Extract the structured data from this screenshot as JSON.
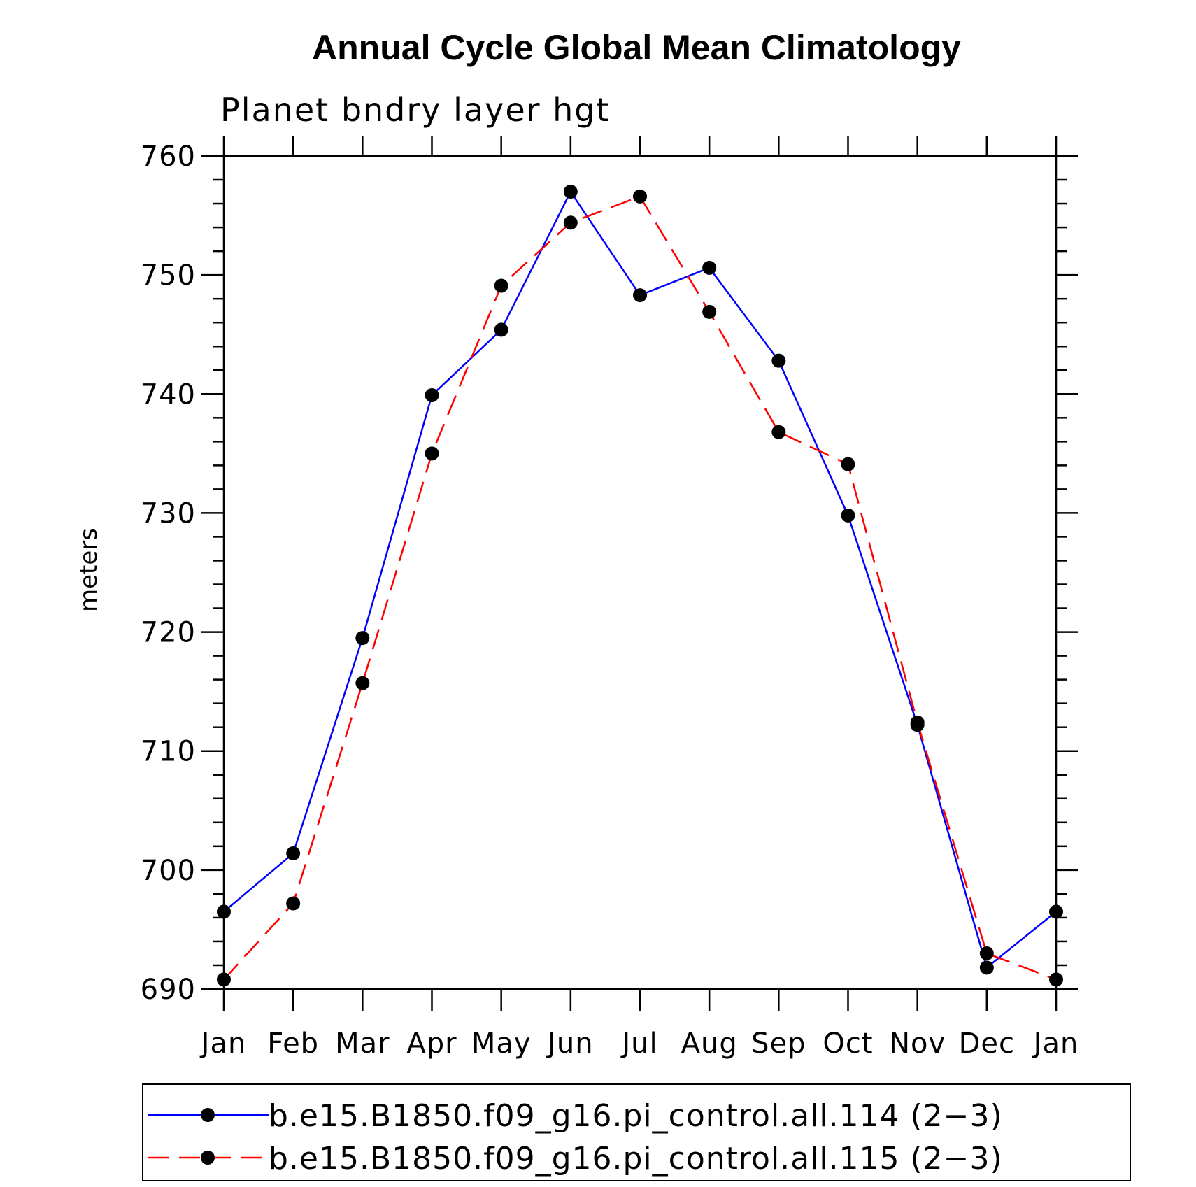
{
  "chart_data": {
    "type": "line",
    "title": "Annual Cycle Global Mean Climatology",
    "subtitle": "Planet bndry layer hgt",
    "xlabel": "",
    "ylabel": "meters",
    "categories": [
      "Jan",
      "Feb",
      "Mar",
      "Apr",
      "May",
      "Jun",
      "Jul",
      "Aug",
      "Sep",
      "Oct",
      "Nov",
      "Dec",
      "Jan"
    ],
    "ylim": [
      690,
      760
    ],
    "yticks": [
      690,
      700,
      710,
      720,
      730,
      740,
      750,
      760
    ],
    "ytick_labels": [
      "690",
      "700",
      "710",
      "720",
      "730",
      "740",
      "750",
      "760"
    ],
    "grid": false,
    "legend_position": "bottom",
    "series": [
      {
        "name": "b.e15.B1850.f09_g16.pi_control.all.114 (2−3)",
        "color": "#0000ff",
        "line_style": "solid",
        "marker": "filled-circle",
        "values": [
          696.5,
          701.4,
          719.5,
          739.9,
          745.4,
          757.0,
          748.3,
          750.6,
          742.8,
          729.8,
          712.2,
          691.8,
          696.5
        ]
      },
      {
        "name": "b.e15.B1850.f09_g16.pi_control.all.115 (2−3)",
        "color": "#ff0000",
        "line_style": "dashed",
        "marker": "filled-circle",
        "values": [
          690.8,
          697.2,
          715.7,
          735.0,
          749.1,
          754.4,
          756.6,
          746.9,
          736.8,
          734.1,
          712.4,
          693.0,
          690.8
        ]
      }
    ]
  }
}
